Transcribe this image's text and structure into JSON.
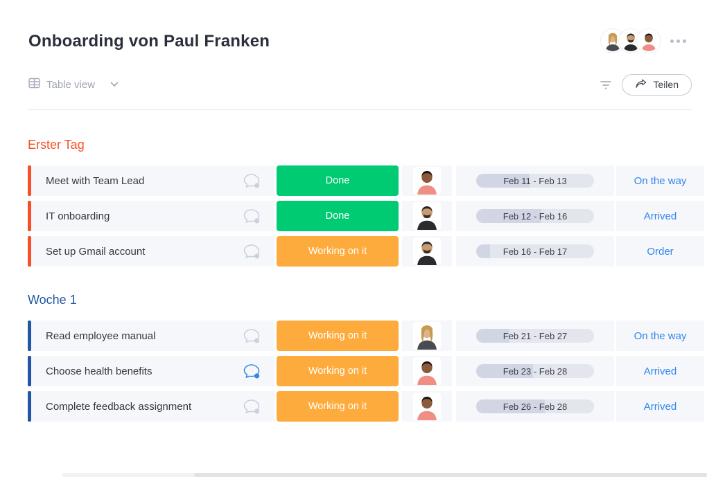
{
  "page": {
    "title": "Onboarding von Paul Franken"
  },
  "header": {
    "avatars": [
      "personC",
      "personB",
      "personA"
    ],
    "more_icon": "ellipsis"
  },
  "toolbar": {
    "view_label": "Table view",
    "share_label": "Teilen"
  },
  "colors": {
    "done": "#00ca72",
    "working": "#fdab3d",
    "group1": "#f4502a",
    "group2": "#2257a5",
    "link": "#2f86eb"
  },
  "people": {
    "personA": {
      "skin": "#8a5a3b",
      "hair": "#1d1410",
      "shirt": "#ef8f84",
      "hair_style": "short"
    },
    "personB": {
      "skin": "#c89b72",
      "hair": "#2a2420",
      "shirt": "#2b2b2e",
      "hair_style": "short",
      "beard": true
    },
    "personC": {
      "skin": "#dcb38e",
      "hair": "#c79a52",
      "shirt": "#4a4a52",
      "hair_style": "long"
    }
  },
  "groups": [
    {
      "name": "Erster Tag",
      "color": "#f4502a",
      "rows": [
        {
          "name": "Meet with Team Lead",
          "status": "Done",
          "status_color": "#00ca72",
          "person": "personA",
          "dates": "Feb 11 - Feb 13",
          "progress": "45%",
          "delivery": "On the way",
          "chat_active": false
        },
        {
          "name": "IT onboarding",
          "status": "Done",
          "status_color": "#00ca72",
          "person": "personB",
          "dates": "Feb 12 - Feb 16",
          "progress": "55%",
          "delivery": "Arrived",
          "chat_active": false
        },
        {
          "name": "Set up Gmail account",
          "status": "Working on it",
          "status_color": "#fdab3d",
          "person": "personB",
          "dates": "Feb 16 - Feb 17",
          "progress": "12%",
          "delivery": "Order",
          "chat_active": false
        }
      ]
    },
    {
      "name": "Woche 1",
      "color": "#2257a5",
      "rows": [
        {
          "name": "Read employee manual",
          "status": "Working on it",
          "status_color": "#fdab3d",
          "person": "personC",
          "dates": "Feb 21 - Feb 27",
          "progress": "28%",
          "delivery": "On the way",
          "chat_active": false
        },
        {
          "name": "Choose health benefits",
          "status": "Working on it",
          "status_color": "#fdab3d",
          "person": "personA",
          "dates": "Feb 23 - Feb 28",
          "progress": "48%",
          "delivery": "Arrived",
          "chat_active": true
        },
        {
          "name": "Complete feedback assignment",
          "status": "Working on it",
          "status_color": "#fdab3d",
          "person": "personA",
          "dates": "Feb 26 - Feb 28",
          "progress": "58%",
          "delivery": "Arrived",
          "chat_active": false
        }
      ]
    }
  ]
}
